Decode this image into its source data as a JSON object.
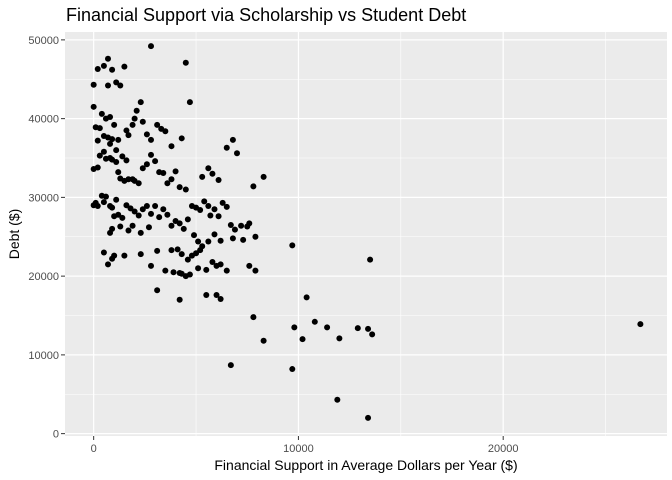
{
  "chart_data": {
    "type": "scatter",
    "title": "Financial Support via Scholarship vs Student Debt",
    "xlabel": "Financial Support in Average Dollars per Year ($)",
    "ylabel": "Debt ($)",
    "xlim": [
      -1400,
      28000
    ],
    "ylim": [
      -300,
      51000
    ],
    "x_ticks": [
      0,
      10000,
      20000
    ],
    "x_tick_labels": [
      "0",
      "10000",
      "20000"
    ],
    "y_ticks": [
      0,
      10000,
      20000,
      30000,
      40000,
      50000
    ],
    "y_tick_labels": [
      "0",
      "10000",
      "20000",
      "30000",
      "40000",
      "50000"
    ],
    "grid": true,
    "panel_color": "#ebebeb",
    "grid_color": "#ffffff",
    "point_color": "#000000",
    "points": [
      [
        0,
        44300
      ],
      [
        200,
        46300
      ],
      [
        500,
        46700
      ],
      [
        700,
        47600
      ],
      [
        900,
        46200
      ],
      [
        1100,
        44600
      ],
      [
        1300,
        44200
      ],
      [
        1500,
        46600
      ],
      [
        2800,
        49200
      ],
      [
        4500,
        47100
      ],
      [
        4700,
        42100
      ],
      [
        0,
        41500
      ],
      [
        700,
        44200
      ],
      [
        100,
        38900
      ],
      [
        300,
        38800
      ],
      [
        400,
        40600
      ],
      [
        600,
        40000
      ],
      [
        800,
        40200
      ],
      [
        1000,
        39200
      ],
      [
        700,
        37600
      ],
      [
        900,
        37400
      ],
      [
        200,
        37200
      ],
      [
        500,
        37800
      ],
      [
        800,
        36800
      ],
      [
        1100,
        36000
      ],
      [
        1200,
        37300
      ],
      [
        1600,
        38500
      ],
      [
        1900,
        39200
      ],
      [
        2000,
        40000
      ],
      [
        2100,
        41000
      ],
      [
        2300,
        42100
      ],
      [
        2400,
        39600
      ],
      [
        2600,
        38000
      ],
      [
        2800,
        37300
      ],
      [
        3100,
        39200
      ],
      [
        3300,
        38700
      ],
      [
        3500,
        38400
      ],
      [
        3800,
        36500
      ],
      [
        4300,
        37500
      ],
      [
        1700,
        37900
      ],
      [
        0,
        33600
      ],
      [
        200,
        33800
      ],
      [
        300,
        35300
      ],
      [
        500,
        35800
      ],
      [
        600,
        34900
      ],
      [
        800,
        35000
      ],
      [
        900,
        34800
      ],
      [
        1100,
        34500
      ],
      [
        1200,
        33200
      ],
      [
        1400,
        35200
      ],
      [
        1600,
        34700
      ],
      [
        1300,
        32400
      ],
      [
        1500,
        32100
      ],
      [
        1700,
        32300
      ],
      [
        1900,
        32300
      ],
      [
        2000,
        32100
      ],
      [
        2200,
        31800
      ],
      [
        2400,
        33700
      ],
      [
        2600,
        34200
      ],
      [
        2800,
        35400
      ],
      [
        3000,
        34600
      ],
      [
        3200,
        33200
      ],
      [
        3400,
        33100
      ],
      [
        3600,
        31800
      ],
      [
        3800,
        32300
      ],
      [
        4000,
        33300
      ],
      [
        4200,
        31300
      ],
      [
        4500,
        31000
      ],
      [
        5300,
        32600
      ],
      [
        5600,
        33700
      ],
      [
        5800,
        33000
      ],
      [
        6100,
        32200
      ],
      [
        6500,
        36300
      ],
      [
        6800,
        37300
      ],
      [
        7000,
        35600
      ],
      [
        8300,
        32600
      ],
      [
        7800,
        31400
      ],
      [
        0,
        29000
      ],
      [
        100,
        29300
      ],
      [
        200,
        28900
      ],
      [
        400,
        30200
      ],
      [
        500,
        29400
      ],
      [
        600,
        30100
      ],
      [
        800,
        28900
      ],
      [
        900,
        28700
      ],
      [
        1100,
        29700
      ],
      [
        1200,
        27800
      ],
      [
        1400,
        27400
      ],
      [
        1600,
        29000
      ],
      [
        1800,
        28600
      ],
      [
        2000,
        28200
      ],
      [
        2200,
        27700
      ],
      [
        2400,
        28500
      ],
      [
        2600,
        28900
      ],
      [
        2800,
        27900
      ],
      [
        3000,
        28900
      ],
      [
        3200,
        27500
      ],
      [
        3400,
        28500
      ],
      [
        3600,
        27800
      ],
      [
        3800,
        26400
      ],
      [
        4000,
        27000
      ],
      [
        4200,
        26700
      ],
      [
        4400,
        26000
      ],
      [
        4600,
        27200
      ],
      [
        4800,
        28900
      ],
      [
        5000,
        28700
      ],
      [
        5200,
        28400
      ],
      [
        5400,
        29500
      ],
      [
        5600,
        28900
      ],
      [
        5700,
        27700
      ],
      [
        5900,
        28500
      ],
      [
        6100,
        27600
      ],
      [
        6300,
        29300
      ],
      [
        6500,
        28800
      ],
      [
        6700,
        26500
      ],
      [
        6900,
        25900
      ],
      [
        7200,
        26400
      ],
      [
        7500,
        26300
      ],
      [
        7600,
        26700
      ],
      [
        1000,
        27600
      ],
      [
        1300,
        26300
      ],
      [
        1700,
        25800
      ],
      [
        1900,
        26400
      ],
      [
        2300,
        25500
      ],
      [
        2700,
        26200
      ],
      [
        800,
        25500
      ],
      [
        900,
        26000
      ],
      [
        4900,
        25200
      ],
      [
        5100,
        24400
      ],
      [
        5300,
        23800
      ],
      [
        5600,
        24400
      ],
      [
        5900,
        25300
      ],
      [
        6200,
        24500
      ],
      [
        6800,
        24800
      ],
      [
        7300,
        24600
      ],
      [
        7900,
        25000
      ],
      [
        500,
        23000
      ],
      [
        1000,
        22600
      ],
      [
        1500,
        22600
      ],
      [
        2300,
        22800
      ],
      [
        3100,
        23200
      ],
      [
        3800,
        23300
      ],
      [
        4100,
        23400
      ],
      [
        4300,
        22800
      ],
      [
        4600,
        22100
      ],
      [
        4800,
        22600
      ],
      [
        5000,
        22900
      ],
      [
        5200,
        23300
      ],
      [
        5500,
        20800
      ],
      [
        5800,
        21800
      ],
      [
        6000,
        21300
      ],
      [
        6200,
        21500
      ],
      [
        6500,
        20700
      ],
      [
        7600,
        21300
      ],
      [
        7900,
        20700
      ],
      [
        9700,
        23900
      ],
      [
        13500,
        22100
      ],
      [
        700,
        21500
      ],
      [
        900,
        22200
      ],
      [
        2800,
        21300
      ],
      [
        3500,
        20700
      ],
      [
        3900,
        20500
      ],
      [
        4200,
        20400
      ],
      [
        4300,
        20300
      ],
      [
        4500,
        20000
      ],
      [
        4700,
        20200
      ],
      [
        5100,
        21000
      ],
      [
        3100,
        18200
      ],
      [
        4200,
        17000
      ],
      [
        5500,
        17600
      ],
      [
        6000,
        17600
      ],
      [
        6200,
        17100
      ],
      [
        7800,
        14800
      ],
      [
        9800,
        13500
      ],
      [
        10400,
        17300
      ],
      [
        10800,
        14200
      ],
      [
        11400,
        13500
      ],
      [
        12000,
        12100
      ],
      [
        12900,
        13400
      ],
      [
        13600,
        12600
      ],
      [
        13400,
        13300
      ],
      [
        8300,
        11800
      ],
      [
        10200,
        12000
      ],
      [
        6700,
        8700
      ],
      [
        9700,
        8200
      ],
      [
        11900,
        4300
      ],
      [
        13400,
        2000
      ],
      [
        26700,
        13900
      ]
    ]
  }
}
